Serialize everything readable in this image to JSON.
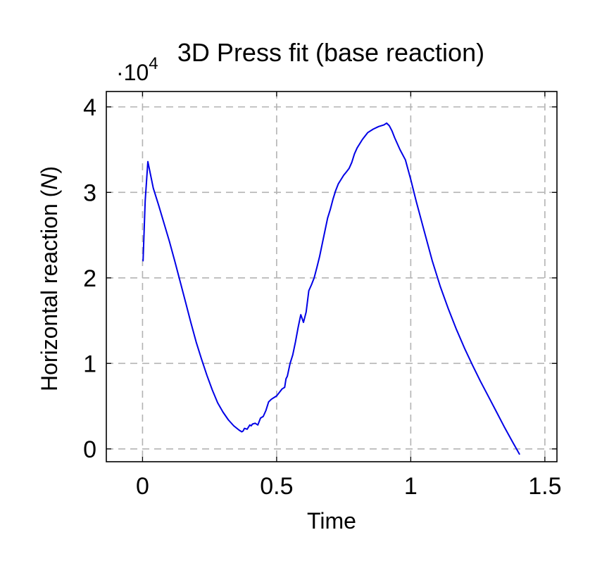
{
  "chart_data": {
    "type": "line",
    "title": "3D Press fit (base reaction)",
    "xlabel": "Time",
    "ylabel_main": "Horizontal reaction (",
    "ylabel_unit": "N",
    "ylabel_close": ")",
    "y_multiplier_base": "·10",
    "y_multiplier_exp": "4",
    "xlim": [
      -0.135,
      1.545
    ],
    "ylim": [
      -0.15,
      4.18
    ],
    "grid": true,
    "x_ticks": [
      {
        "value": 0,
        "label": "0"
      },
      {
        "value": 0.5,
        "label": "0.5"
      },
      {
        "value": 1,
        "label": "1"
      },
      {
        "value": 1.5,
        "label": "1.5"
      }
    ],
    "y_ticks": [
      {
        "value": 0,
        "label": "0"
      },
      {
        "value": 1,
        "label": "1"
      },
      {
        "value": 2,
        "label": "2"
      },
      {
        "value": 3,
        "label": "3"
      },
      {
        "value": 4,
        "label": "4"
      }
    ],
    "series": [
      {
        "color": "#0000e6",
        "x": [
          0.002,
          0.01,
          0.02,
          0.04,
          0.06,
          0.08,
          0.1,
          0.12,
          0.14,
          0.16,
          0.18,
          0.2,
          0.22,
          0.24,
          0.26,
          0.28,
          0.3,
          0.32,
          0.34,
          0.36,
          0.37,
          0.375,
          0.38,
          0.39,
          0.4,
          0.405,
          0.41,
          0.42,
          0.43,
          0.44,
          0.45,
          0.46,
          0.47,
          0.48,
          0.49,
          0.5,
          0.51,
          0.52,
          0.53,
          0.535,
          0.54,
          0.55,
          0.56,
          0.57,
          0.58,
          0.59,
          0.6,
          0.61,
          0.62,
          0.63,
          0.64,
          0.65,
          0.66,
          0.67,
          0.68,
          0.69,
          0.7,
          0.71,
          0.72,
          0.73,
          0.74,
          0.75,
          0.76,
          0.77,
          0.78,
          0.79,
          0.8,
          0.82,
          0.84,
          0.86,
          0.88,
          0.9,
          0.91,
          0.92,
          0.93,
          0.94,
          0.96,
          0.98,
          1.0,
          1.02,
          1.05,
          1.08,
          1.11,
          1.14,
          1.17,
          1.2,
          1.23,
          1.26,
          1.29,
          1.32,
          1.35,
          1.38,
          1.405
        ],
        "y": [
          2.2,
          2.9,
          3.36,
          3.05,
          2.85,
          2.64,
          2.43,
          2.2,
          1.96,
          1.72,
          1.48,
          1.25,
          1.05,
          0.86,
          0.69,
          0.54,
          0.43,
          0.34,
          0.27,
          0.22,
          0.2,
          0.21,
          0.24,
          0.23,
          0.28,
          0.27,
          0.29,
          0.3,
          0.28,
          0.36,
          0.38,
          0.45,
          0.55,
          0.58,
          0.6,
          0.62,
          0.66,
          0.7,
          0.72,
          0.82,
          0.85,
          1.0,
          1.1,
          1.25,
          1.42,
          1.57,
          1.48,
          1.6,
          1.85,
          1.92,
          2.0,
          2.12,
          2.25,
          2.4,
          2.55,
          2.7,
          2.8,
          2.92,
          3.02,
          3.1,
          3.15,
          3.2,
          3.24,
          3.28,
          3.35,
          3.45,
          3.52,
          3.62,
          3.7,
          3.74,
          3.77,
          3.79,
          3.81,
          3.78,
          3.72,
          3.64,
          3.5,
          3.38,
          3.15,
          2.9,
          2.55,
          2.2,
          1.9,
          1.64,
          1.4,
          1.18,
          0.98,
          0.79,
          0.61,
          0.43,
          0.25,
          0.08,
          -0.06
        ]
      }
    ]
  }
}
